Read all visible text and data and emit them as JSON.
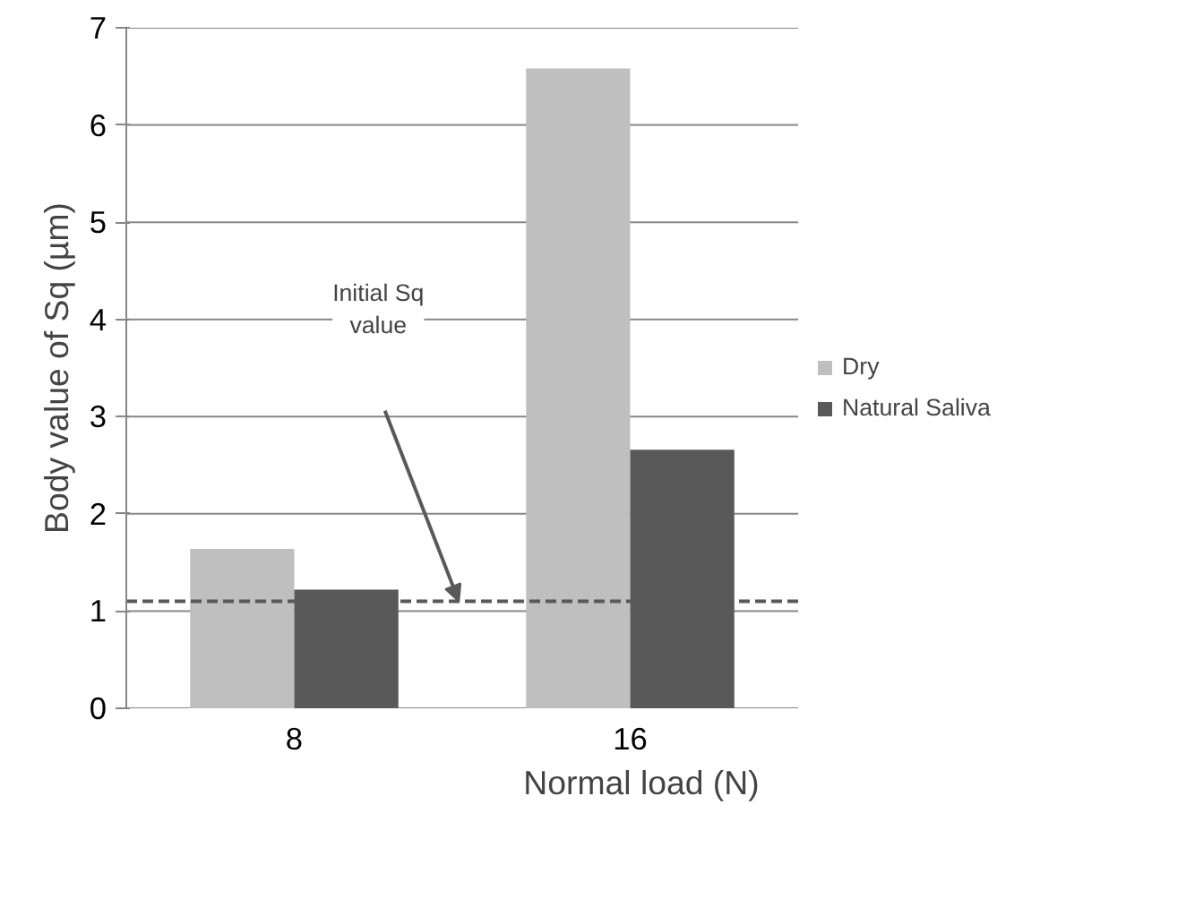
{
  "chart_data": {
    "type": "bar",
    "xlabel": "Normal load (N)",
    "ylabel": "Body value of Sq (µm)",
    "categories": [
      "8",
      "16"
    ],
    "series": [
      {
        "name": "Dry",
        "color": "#bfbfbf",
        "values": [
          1.64,
          6.58
        ]
      },
      {
        "name": "Natural Saliva",
        "color": "#595959",
        "values": [
          1.22,
          2.66
        ]
      }
    ],
    "ylim": [
      0,
      7
    ],
    "yticks": [
      0,
      1,
      2,
      3,
      4,
      5,
      6,
      7
    ],
    "grid": "y",
    "legend": "right",
    "ref_lines": [
      {
        "axis": "y",
        "value": 1.1,
        "color": "#595959",
        "line_style": "dashed"
      }
    ],
    "annotations": [
      "Initial Sq value"
    ]
  }
}
